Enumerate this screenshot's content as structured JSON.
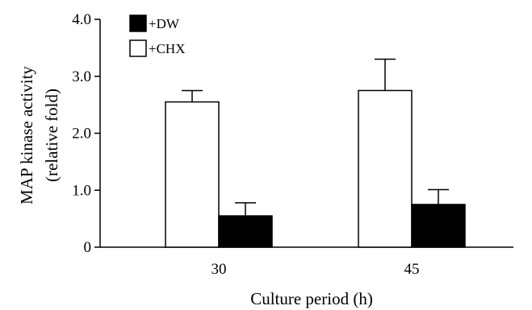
{
  "chart_data": {
    "type": "bar",
    "categories": [
      "30",
      "45"
    ],
    "series": [
      {
        "name": "+CHX",
        "fill": "#ffffff",
        "values": [
          2.55,
          2.75
        ],
        "errors": [
          0.2,
          0.55
        ]
      },
      {
        "name": "+DW",
        "fill": "#000000",
        "values": [
          0.55,
          0.75
        ],
        "errors": [
          0.23,
          0.26
        ]
      }
    ],
    "legend_order": [
      "+DW",
      "+CHX"
    ],
    "xlabel": "Culture period (h)",
    "ylabel": [
      "MAP kinase activity",
      "(relative fold)"
    ],
    "ylim": [
      0,
      4.0
    ],
    "yticks": [
      {
        "value": 0,
        "label": "0"
      },
      {
        "value": 1.0,
        "label": "1.0"
      },
      {
        "value": 2.0,
        "label": "2.0"
      },
      {
        "value": 3.0,
        "label": "3.0"
      },
      {
        "value": 4.0,
        "label": "4.0"
      }
    ],
    "grid": false,
    "legend_position": "top-left"
  }
}
